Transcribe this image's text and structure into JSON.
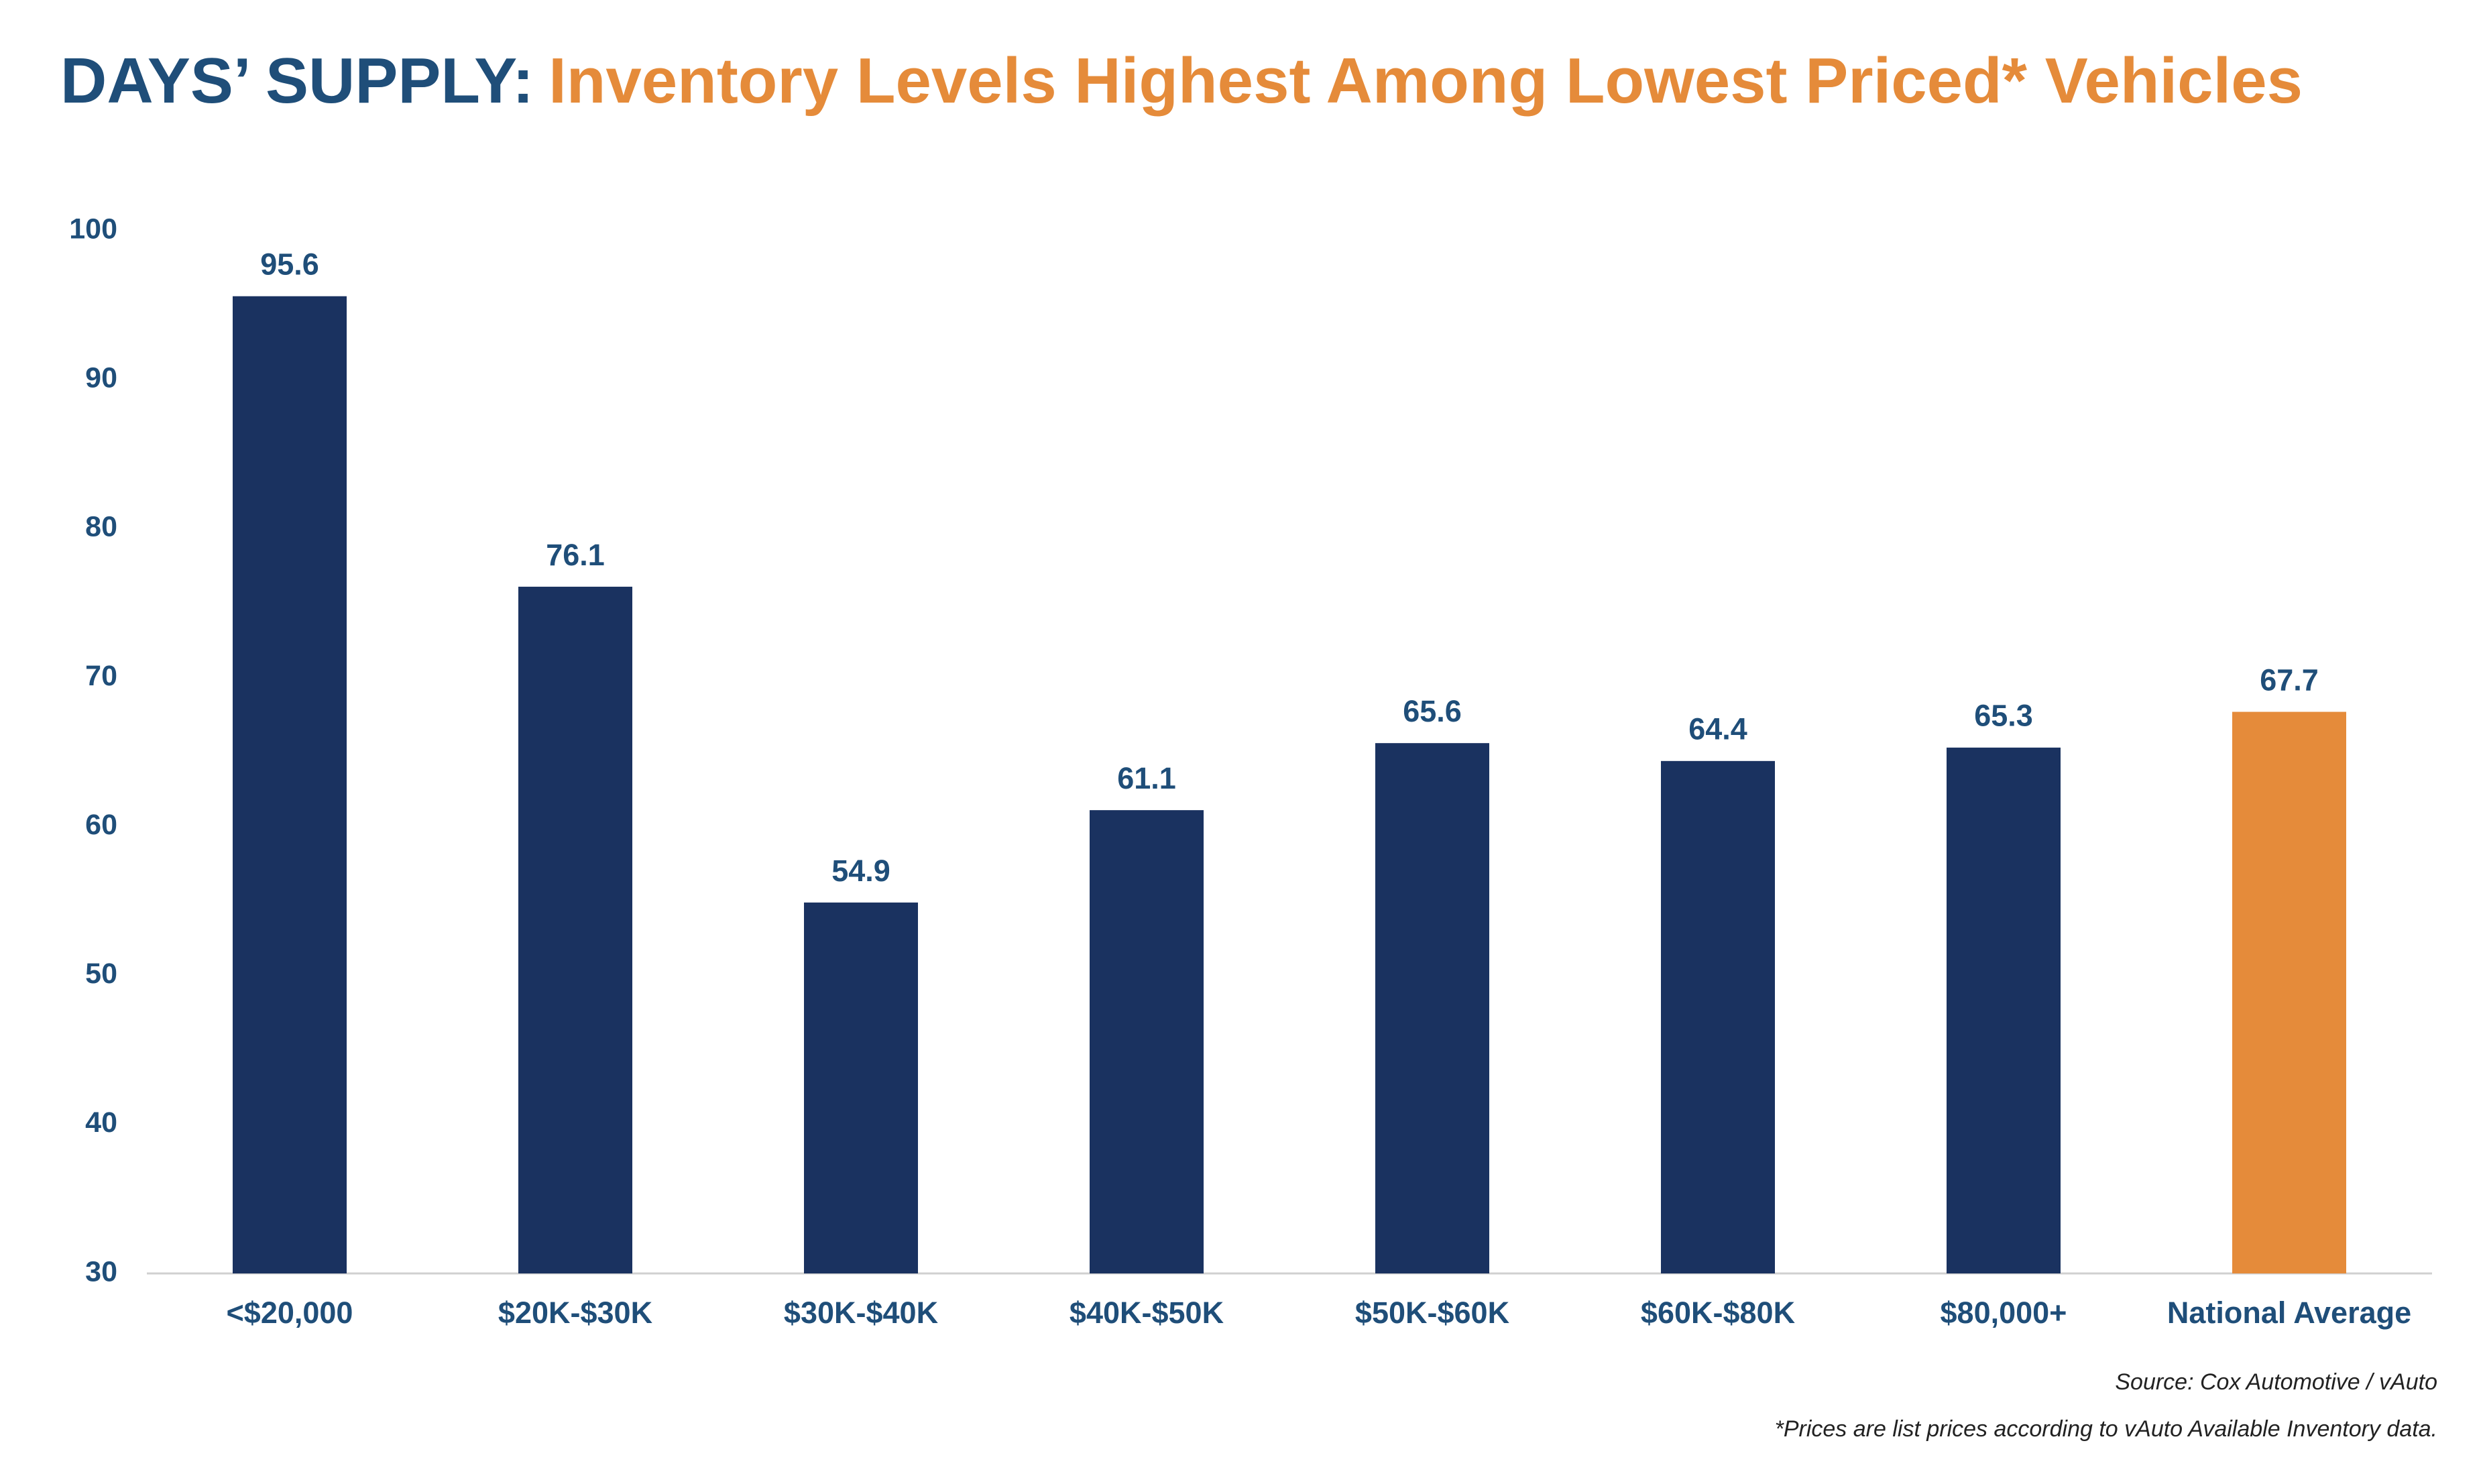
{
  "chart_data": {
    "type": "bar",
    "title": [
      "DAYS’ SUPPLY:",
      "Inventory Levels Highest Among Lowest Priced* Vehicles"
    ],
    "categories": [
      "<$20,000",
      "$20K-$30K",
      "$30K-$40K",
      "$40K-$50K",
      "$50K-$60K",
      "$60K-$80K",
      "$80,000+",
      "National Average"
    ],
    "values": [
      95.6,
      76.1,
      54.9,
      61.1,
      65.6,
      64.4,
      65.3,
      67.7
    ],
    "colors": [
      "#1a3260",
      "#1a3260",
      "#1a3260",
      "#1a3260",
      "#1a3260",
      "#1a3260",
      "#1a3260",
      "#e58b3a"
    ],
    "ylim": [
      30,
      100
    ],
    "yticks": [
      30,
      40,
      50,
      60,
      70,
      80,
      90,
      100
    ],
    "grid": false,
    "source": "Source: Cox Automotive / vAuto",
    "note": "*Prices are list prices according to vAuto Available Inventory data."
  }
}
